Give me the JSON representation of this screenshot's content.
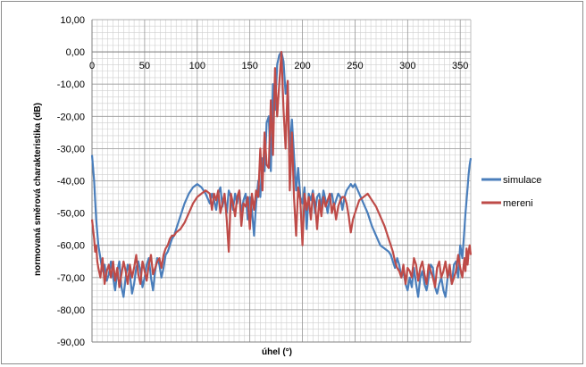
{
  "chart_data": {
    "type": "line",
    "title": "",
    "xlabel": "úhel (°)",
    "ylabel": "normovaná směrová charakteristika (dB)",
    "xlim": [
      0,
      360
    ],
    "ylim": [
      -90,
      10
    ],
    "x_ticks": [
      "0",
      "50",
      "100",
      "150",
      "200",
      "250",
      "300",
      "350"
    ],
    "y_ticks": [
      "10,00",
      "0,00",
      "-10,00",
      "-20,00",
      "-30,00",
      "-40,00",
      "-50,00",
      "-60,00",
      "-70,00",
      "-80,00",
      "-90,00"
    ],
    "grid": true,
    "legend_position": "right",
    "series": [
      {
        "name": "simulace",
        "color": "#4a7ebb",
        "x": [
          0,
          1,
          2,
          3,
          4,
          5,
          6,
          8,
          10,
          12,
          14,
          16,
          18,
          20,
          22,
          24,
          26,
          28,
          30,
          32,
          34,
          36,
          38,
          40,
          42,
          44,
          46,
          48,
          50,
          52,
          54,
          56,
          58,
          60,
          62,
          64,
          66,
          68,
          70,
          72,
          74,
          76,
          78,
          80,
          84,
          88,
          92,
          96,
          100,
          104,
          108,
          112,
          114,
          116,
          118,
          120,
          122,
          124,
          126,
          128,
          130,
          132,
          134,
          136,
          138,
          140,
          142,
          144,
          146,
          148,
          150,
          152,
          154,
          156,
          158,
          160,
          162,
          164,
          166,
          168,
          170,
          172,
          174,
          176,
          178,
          180,
          182,
          184,
          186,
          188,
          190,
          192,
          194,
          196,
          198,
          200,
          202,
          204,
          206,
          208,
          210,
          212,
          214,
          216,
          218,
          220,
          222,
          224,
          226,
          228,
          230,
          232,
          234,
          236,
          238,
          240,
          242,
          244,
          246,
          248,
          250,
          254,
          258,
          262,
          266,
          270,
          274,
          278,
          282,
          284,
          286,
          288,
          290,
          292,
          294,
          296,
          298,
          300,
          302,
          304,
          306,
          308,
          310,
          312,
          314,
          316,
          318,
          320,
          322,
          324,
          326,
          328,
          330,
          332,
          334,
          336,
          338,
          340,
          342,
          344,
          346,
          348,
          350,
          352,
          354,
          355,
          356,
          357,
          358,
          359,
          360
        ],
        "y": [
          -32,
          -36,
          -40,
          -46,
          -52,
          -56,
          -60,
          -64,
          -68,
          -66,
          -71,
          -69,
          -65,
          -70,
          -74,
          -68,
          -65,
          -73,
          -76,
          -70,
          -66,
          -69,
          -75,
          -72,
          -67,
          -65,
          -68,
          -73,
          -70,
          -66,
          -64,
          -70,
          -74,
          -68,
          -64,
          -66,
          -70,
          -67,
          -63,
          -62,
          -60,
          -58,
          -57,
          -55,
          -51,
          -47,
          -44,
          -42,
          -41,
          -42,
          -44,
          -47,
          -44,
          -46,
          -49,
          -44,
          -42,
          -48,
          -45,
          -50,
          -43,
          -45,
          -49,
          -44,
          -47,
          -43,
          -50,
          -46,
          -44,
          -52,
          -45,
          -49,
          -57,
          -47,
          -40,
          -45,
          -33,
          -37,
          -22,
          -20,
          -37,
          -10,
          -18,
          -4,
          -1,
          0,
          -3,
          -13,
          -9,
          -31,
          -21,
          -32,
          -43,
          -36,
          -45,
          -47,
          -42,
          -55,
          -44,
          -46,
          -43,
          -50,
          -45,
          -44,
          -48,
          -43,
          -46,
          -50,
          -45,
          -44,
          -48,
          -46,
          -44,
          -45,
          -49,
          -45,
          -43,
          -42,
          -41,
          -42,
          -41,
          -44,
          -47,
          -50,
          -54,
          -57,
          -60,
          -61,
          -62,
          -63,
          -65,
          -67,
          -64,
          -66,
          -70,
          -68,
          -72,
          -74,
          -70,
          -73,
          -67,
          -72,
          -76,
          -70,
          -68,
          -72,
          -74,
          -70,
          -66,
          -67,
          -73,
          -75,
          -72,
          -70,
          -74,
          -76,
          -70,
          -68,
          -72,
          -66,
          -65,
          -70,
          -60,
          -64,
          -55,
          -50,
          -46,
          -42,
          -38,
          -35,
          -33
        ]
      },
      {
        "name": "mereni",
        "color": "#be4b48",
        "x": [
          0,
          1,
          2,
          3,
          4,
          5,
          6,
          8,
          10,
          12,
          14,
          16,
          18,
          20,
          22,
          24,
          26,
          28,
          30,
          32,
          34,
          36,
          38,
          40,
          42,
          44,
          46,
          48,
          50,
          52,
          54,
          56,
          58,
          60,
          62,
          64,
          66,
          68,
          70,
          72,
          74,
          76,
          78,
          80,
          84,
          88,
          92,
          96,
          100,
          104,
          108,
          112,
          114,
          116,
          118,
          120,
          122,
          124,
          126,
          128,
          130,
          132,
          134,
          136,
          138,
          140,
          142,
          144,
          146,
          148,
          150,
          152,
          154,
          156,
          158,
          160,
          162,
          164,
          166,
          168,
          170,
          172,
          174,
          176,
          178,
          180,
          182,
          184,
          186,
          188,
          190,
          192,
          194,
          196,
          198,
          200,
          202,
          204,
          206,
          208,
          210,
          212,
          214,
          216,
          218,
          220,
          222,
          224,
          226,
          228,
          230,
          232,
          234,
          236,
          238,
          240,
          242,
          244,
          246,
          248,
          250,
          254,
          258,
          262,
          266,
          270,
          274,
          278,
          282,
          284,
          286,
          288,
          290,
          292,
          294,
          296,
          298,
          300,
          302,
          304,
          306,
          308,
          310,
          312,
          314,
          316,
          318,
          320,
          322,
          324,
          326,
          328,
          330,
          332,
          334,
          336,
          338,
          340,
          342,
          344,
          346,
          348,
          350,
          352,
          354,
          355,
          356,
          357,
          358,
          359,
          360
        ],
        "y": [
          -52,
          -55,
          -58,
          -62,
          -60,
          -65,
          -67,
          -70,
          -64,
          -72,
          -68,
          -66,
          -70,
          -65,
          -71,
          -67,
          -73,
          -69,
          -65,
          -68,
          -72,
          -66,
          -70,
          -67,
          -63,
          -69,
          -72,
          -65,
          -68,
          -71,
          -66,
          -63,
          -69,
          -67,
          -65,
          -64,
          -67,
          -63,
          -61,
          -60,
          -58,
          -57,
          -57,
          -56,
          -55,
          -53,
          -50,
          -47,
          -45,
          -44,
          -43,
          -44,
          -49,
          -44,
          -46,
          -43,
          -50,
          -47,
          -44,
          -52,
          -62,
          -44,
          -47,
          -51,
          -45,
          -43,
          -54,
          -47,
          -48,
          -45,
          -55,
          -44,
          -49,
          -43,
          -45,
          -30,
          -43,
          -25,
          -35,
          -36,
          -15,
          -32,
          -5,
          -20,
          -10,
          0,
          -18,
          -30,
          -9,
          -43,
          -25,
          -45,
          -57,
          -42,
          -46,
          -60,
          -44,
          -49,
          -45,
          -52,
          -44,
          -47,
          -55,
          -46,
          -51,
          -45,
          -48,
          -46,
          -44,
          -50,
          -47,
          -52,
          -48,
          -46,
          -45,
          -45,
          -47,
          -51,
          -56,
          -52,
          -50,
          -46,
          -45,
          -44,
          -46,
          -48,
          -51,
          -54,
          -58,
          -60,
          -62,
          -65,
          -67,
          -68,
          -70,
          -66,
          -72,
          -67,
          -68,
          -70,
          -64,
          -66,
          -71,
          -67,
          -65,
          -69,
          -72,
          -66,
          -68,
          -70,
          -73,
          -67,
          -65,
          -70,
          -68,
          -65,
          -70,
          -66,
          -72,
          -70,
          -68,
          -63,
          -67,
          -70,
          -64,
          -68,
          -61,
          -66,
          -62,
          -60,
          -63
        ]
      }
    ]
  },
  "legend": {
    "items": [
      {
        "label": "simulace",
        "color": "#4a7ebb"
      },
      {
        "label": "mereni",
        "color": "#be4b48"
      }
    ]
  }
}
